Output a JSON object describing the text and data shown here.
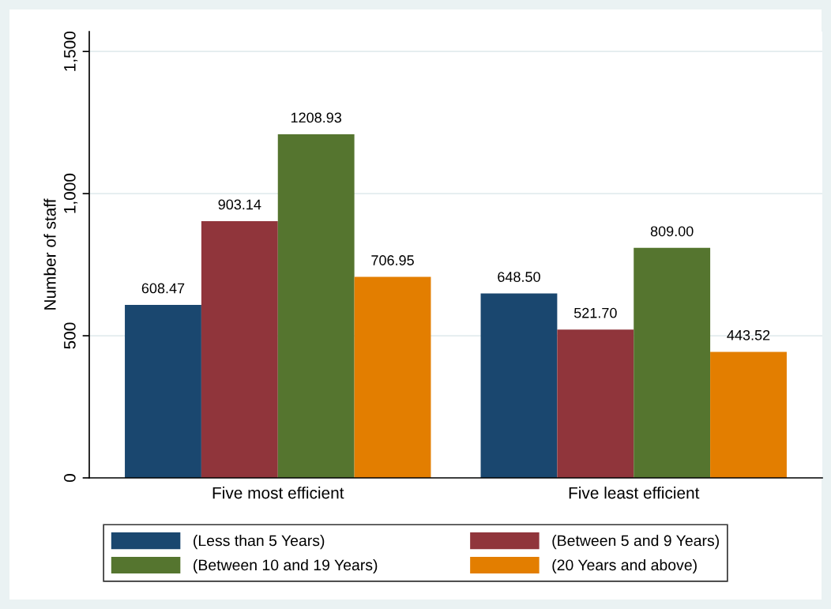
{
  "chart_data": {
    "type": "bar",
    "ylabel": "Number of staff",
    "categories": [
      "Five most efficient",
      "Five least efficient"
    ],
    "series": [
      {
        "name": "(Less than 5 Years)",
        "color": "#1a476f",
        "values": [
          608.47,
          648.5
        ]
      },
      {
        "name": "(Between 5 and 9 Years)",
        "color": "#90353b",
        "values": [
          903.14,
          521.7
        ]
      },
      {
        "name": "(Between 10 and 19 Years)",
        "color": "#55752f",
        "values": [
          1208.93,
          809.0
        ]
      },
      {
        "name": "(20 Years and above)",
        "color": "#e37e00",
        "values": [
          706.95,
          443.52
        ]
      }
    ],
    "value_labels": [
      [
        "608.47",
        "648.50"
      ],
      [
        "903.14",
        "521.70"
      ],
      [
        "1208.93",
        "809.00"
      ],
      [
        "706.95",
        "443.52"
      ]
    ],
    "ylim": [
      0,
      1570
    ],
    "yticks": [
      0,
      {
        "value": 500,
        "label": "500"
      },
      {
        "value": 1000,
        "label": "1,000"
      },
      {
        "value": 1500,
        "label": "1,500"
      }
    ],
    "grid": "y",
    "legend": "bottom"
  }
}
